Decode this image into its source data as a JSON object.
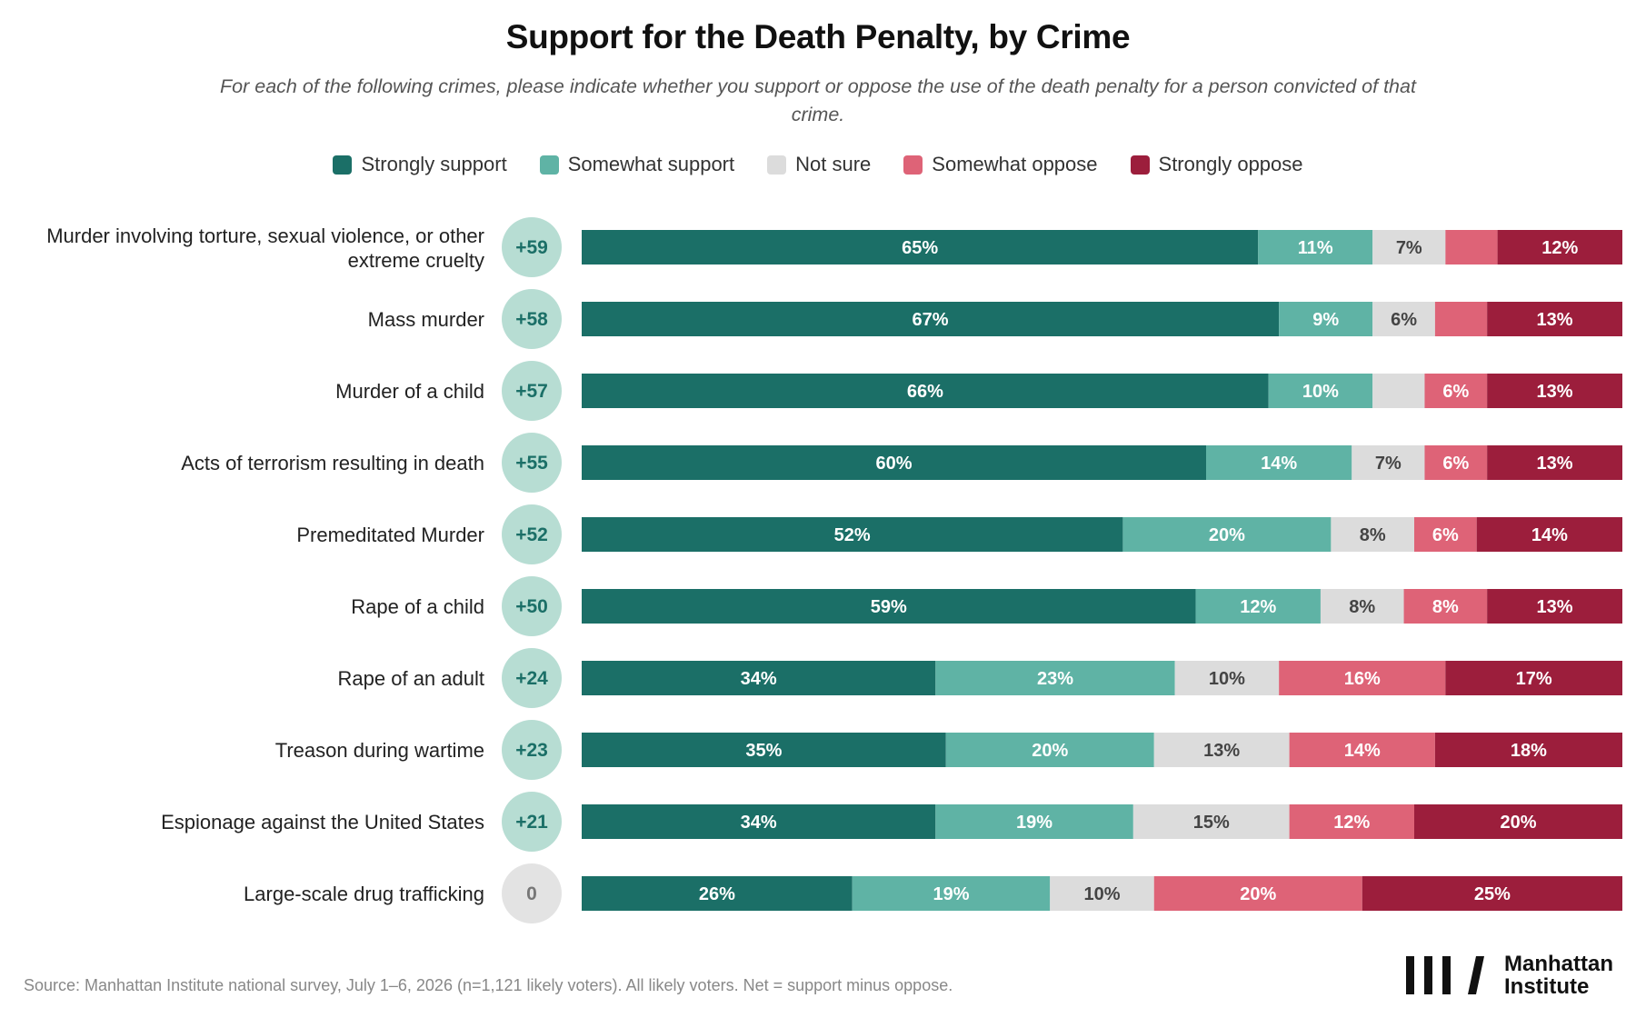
{
  "chart_data": {
    "type": "bar",
    "stacked": true,
    "orientation": "horizontal",
    "title": "Support for the Death Penalty, by Crime",
    "subtitle": "For each of the following crimes, please indicate whether you support or oppose the use of the death penalty for a person convicted of that crime.",
    "legend": [
      {
        "name": "Strongly support",
        "color": "#1b6f67"
      },
      {
        "name": "Somewhat support",
        "color": "#5fb3a5"
      },
      {
        "name": "Not sure",
        "color": "#dcdcdc"
      },
      {
        "name": "Somewhat oppose",
        "color": "#de6377"
      },
      {
        "name": "Strongly oppose",
        "color": "#9c1e3c"
      }
    ],
    "legend_position": "top",
    "categories": [
      "Murder involving torture, sexual violence, or other extreme cruelty",
      "Mass murder",
      "Murder of a child",
      "Acts of terrorism resulting in death",
      "Premeditated Murder",
      "Rape of a child",
      "Rape of an adult",
      "Treason during wartime",
      "Espionage against the United States",
      "Large-scale drug trafficking"
    ],
    "net": [
      "+59",
      "+58",
      "+57",
      "+55",
      "+52",
      "+50",
      "+24",
      "+23",
      "+21",
      "0"
    ],
    "series": [
      {
        "name": "Strongly support",
        "values": [
          65,
          67,
          66,
          60,
          52,
          59,
          34,
          35,
          34,
          26
        ]
      },
      {
        "name": "Somewhat support",
        "values": [
          11,
          9,
          10,
          14,
          20,
          12,
          23,
          20,
          19,
          19
        ]
      },
      {
        "name": "Not sure",
        "values": [
          7,
          6,
          5,
          7,
          8,
          8,
          10,
          13,
          15,
          10
        ]
      },
      {
        "name": "Somewhat oppose",
        "values": [
          5,
          5,
          6,
          6,
          6,
          8,
          16,
          14,
          12,
          20
        ]
      },
      {
        "name": "Strongly oppose",
        "values": [
          12,
          13,
          13,
          13,
          14,
          13,
          17,
          18,
          20,
          25
        ]
      }
    ],
    "segment_labels": [
      [
        "65%",
        "11%",
        "7%",
        "",
        "12%"
      ],
      [
        "67%",
        "9%",
        "6%",
        "",
        "13%"
      ],
      [
        "66%",
        "10%",
        "",
        "6%",
        "13%"
      ],
      [
        "60%",
        "14%",
        "7%",
        "6%",
        "13%"
      ],
      [
        "52%",
        "20%",
        "8%",
        "6%",
        "14%"
      ],
      [
        "59%",
        "12%",
        "8%",
        "8%",
        "13%"
      ],
      [
        "34%",
        "23%",
        "10%",
        "16%",
        "17%"
      ],
      [
        "35%",
        "20%",
        "13%",
        "14%",
        "18%"
      ],
      [
        "34%",
        "19%",
        "15%",
        "12%",
        "20%"
      ],
      [
        "26%",
        "19%",
        "10%",
        "20%",
        "25%"
      ]
    ],
    "xlim": [
      0,
      100
    ]
  },
  "source": "Source: Manhattan Institute national survey, July 1–6, 2026 (n=1,121 likely voters). All likely voters. Net = support minus oppose.",
  "logo": {
    "line1": "Manhattan",
    "line2": "Institute"
  }
}
